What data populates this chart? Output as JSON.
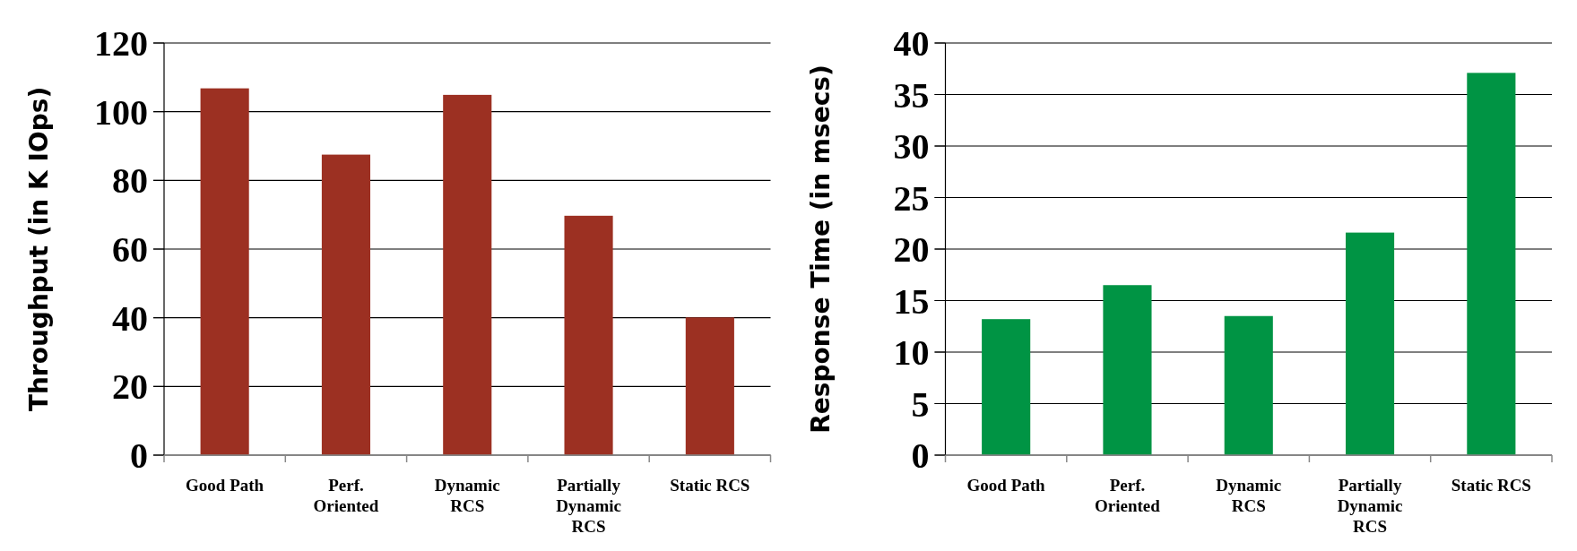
{
  "chart_data": [
    {
      "type": "bar",
      "ylabel": "Throughput   (in K IOps)",
      "categories": [
        "Good Path",
        "Perf. Oriented",
        "Dynamic RCS",
        "Partially Dynamic RCS",
        "Static RCS"
      ],
      "values": [
        106.8,
        87.5,
        104.9,
        69.7,
        40.1
      ],
      "color": "#9c3022",
      "ylim": [
        0,
        120
      ],
      "yticks": [
        0,
        20,
        40,
        60,
        80,
        100,
        120
      ],
      "grid": "y"
    },
    {
      "type": "bar",
      "ylabel": "Response Time  (in msecs)",
      "categories": [
        "Good Path",
        "Perf. Oriented",
        "Dynamic RCS",
        "Partially Dynamic RCS",
        "Static RCS"
      ],
      "values": [
        13.2,
        16.5,
        13.5,
        21.6,
        37.1
      ],
      "color": "#009444",
      "ylim": [
        0,
        40
      ],
      "yticks": [
        0,
        5,
        10,
        15,
        20,
        25,
        30,
        35,
        40
      ],
      "grid": "y"
    }
  ]
}
